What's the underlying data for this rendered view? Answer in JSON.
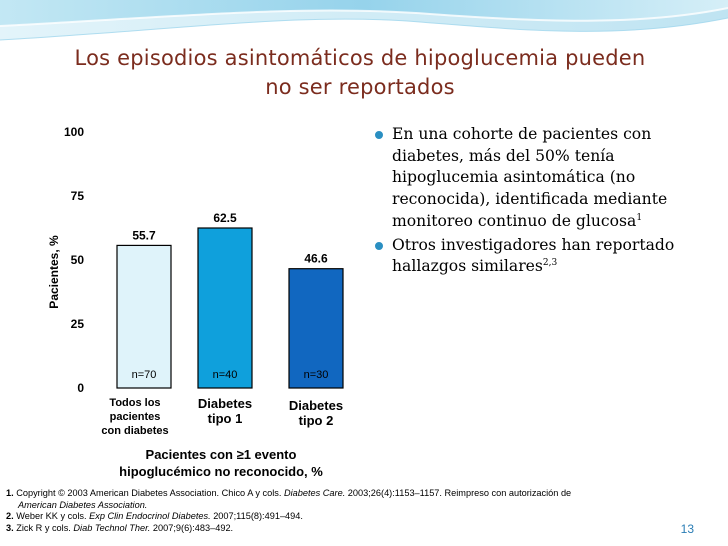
{
  "slide": {
    "title_line1": "Los episodios asintomáticos de hipoglucemia pueden",
    "title_line2": "no ser reportados",
    "page_number": "13"
  },
  "colors": {
    "title": "#7b2c1e",
    "bullet": "#2a8fc2",
    "bar1": "#dff3fa",
    "bar2": "#0fa0dc",
    "bar3": "#1167c0"
  },
  "chart_data": {
    "type": "bar",
    "ylabel": "Pacientes, %",
    "xlabel_line1": "Pacientes con ≥1 evento",
    "xlabel_line2": "hipoglucémico no reconocido, %",
    "ylim": [
      0,
      100
    ],
    "yticks": [
      "0",
      "25",
      "50",
      "75",
      "100"
    ],
    "categories": [
      [
        "Todos los",
        "pacientes",
        "con diabetes"
      ],
      [
        "Diabetes",
        "tipo 1"
      ],
      [
        "Diabetes",
        "tipo 2"
      ]
    ],
    "values": [
      55.7,
      62.5,
      46.6
    ],
    "value_labels": [
      "55.7",
      "62.5",
      "46.6"
    ],
    "n_labels": [
      "n=70",
      "n=40",
      "n=30"
    ],
    "grid": false
  },
  "bullets": {
    "item1": "En una cohorte de pacientes con diabetes, más del 50% tenía hipoglucemia asintomática (no reconocida), identificada mediante monitoreo continuo de glucosa",
    "item1_sup": "1",
    "item2": "Otros investigadores han reportado hallazgos similares",
    "item2_sup": "2,3"
  },
  "references": {
    "r1_num": "1.",
    "r1_a": "Copyright © 2003 American Diabetes Association. Chico A y cols. ",
    "r1_journal": "Diabetes Care.",
    "r1_b": " 2003;26(4):1153–1157. Reimpreso con autorización de",
    "r1_cont": "American Diabetes Association.",
    "r2_num": "2.",
    "r2_a": "Weber KK y cols. ",
    "r2_journal": "Exp Clin Endocrinol Diabetes.",
    "r2_b": " 2007;115(8):491–494.",
    "r3_num": "3.",
    "r3_a": "Zick R y cols. ",
    "r3_journal": "Diab Technol Ther.",
    "r3_b": " 2007;9(6):483–492."
  }
}
